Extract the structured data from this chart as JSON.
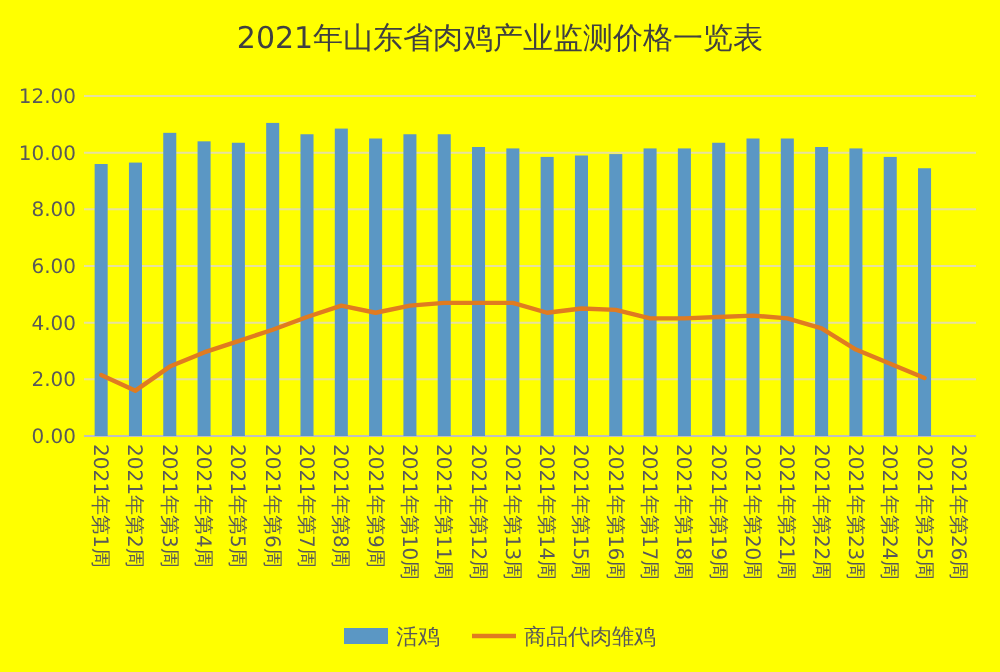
{
  "chart_data": {
    "type": "bar",
    "title": "2021年山东省肉鸡产业监测价格一览表",
    "categories": [
      "2021年第1周",
      "2021年第2周",
      "2021年第3周",
      "2021年第4周",
      "2021年第5周",
      "2021年第6周",
      "2021年第7周",
      "2021年第8周",
      "2021年第9周",
      "2021年第10周",
      "2021年第11周",
      "2021年第12周",
      "2021年第13周",
      "2021年第14周",
      "2021年第15周",
      "2021年第16周",
      "2021年第17周",
      "2021年第18周",
      "2021年第19周",
      "2021年第20周",
      "2021年第21周",
      "2021年第22周",
      "2021年第23周",
      "2021年第24周",
      "2021年第25周",
      "2021年第26周"
    ],
    "series": [
      {
        "name": "活鸡",
        "color": "#5b97c4",
        "values": [
          9.6,
          9.65,
          10.7,
          10.4,
          10.35,
          11.05,
          10.65,
          10.85,
          10.5,
          10.65,
          10.65,
          10.2,
          10.15,
          9.85,
          9.9,
          9.95,
          10.15,
          10.15,
          10.35,
          10.5,
          10.5,
          10.2,
          10.15,
          9.85,
          9.45,
          null
        ]
      },
      {
        "name": "商品代肉雏鸡",
        "type": "line",
        "color": "#e07b20",
        "values": [
          2.15,
          1.6,
          2.45,
          2.95,
          3.35,
          3.75,
          4.2,
          4.6,
          4.35,
          4.6,
          4.7,
          4.7,
          4.7,
          4.35,
          4.5,
          4.45,
          4.15,
          4.15,
          4.2,
          4.25,
          4.15,
          3.8,
          3.05,
          2.55,
          2.05,
          null
        ]
      }
    ],
    "ylim": [
      0,
      12
    ],
    "yticks": [
      {
        "value": 0,
        "label": "0.00"
      },
      {
        "value": 2,
        "label": "2.00"
      },
      {
        "value": 4,
        "label": "4.00"
      },
      {
        "value": 6,
        "label": "6.00"
      },
      {
        "value": 8,
        "label": "8.00"
      },
      {
        "value": 10,
        "label": "10.00"
      },
      {
        "value": 12,
        "label": "12.00"
      }
    ],
    "grid": "y",
    "legend": "bottom"
  }
}
